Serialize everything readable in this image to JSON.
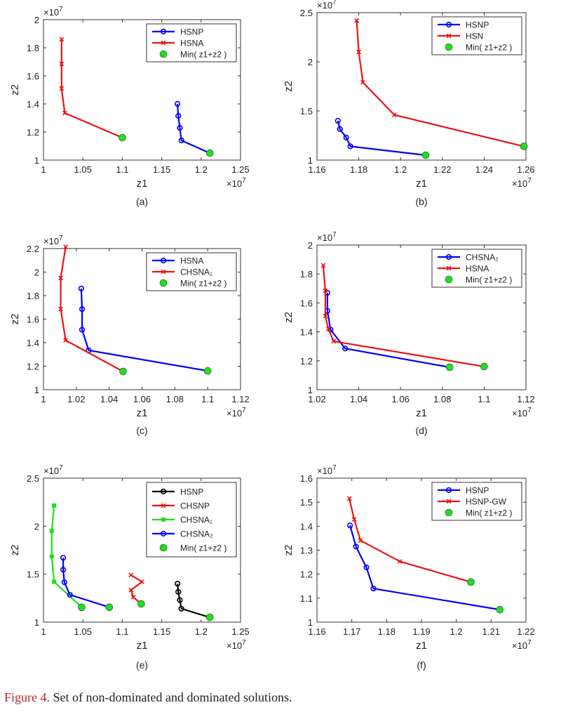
{
  "caption": {
    "label": "Figure 4.",
    "text": "Set of non-dominated and dominated solutions."
  },
  "colors": {
    "blue": "#0000ff",
    "red": "#ee1111",
    "green": "#22dd22",
    "black": "#000000",
    "marker_green": "#22dd22"
  },
  "chart_data": [
    {
      "type": "line",
      "panel": "(a)",
      "xlabel": "z1",
      "ylabel": "z2",
      "x_exponent": "×10^7",
      "y_exponent": "×10^7",
      "xlim": [
        1,
        1.25
      ],
      "ylim": [
        1,
        2
      ],
      "xticks": [
        1,
        1.05,
        1.1,
        1.15,
        1.2,
        1.25
      ],
      "yticks": [
        1,
        1.2,
        1.4,
        1.6,
        1.8,
        2
      ],
      "xticklabels": [
        "1",
        "1.05",
        "1.1",
        "1.15",
        "1.2",
        "1.25"
      ],
      "yticklabels": [
        "1",
        "1.2",
        "1.4",
        "1.6",
        "1.8",
        "2"
      ],
      "legend_position": "top-right",
      "series": [
        {
          "name": "HSNP",
          "color": "#0000ff",
          "marker": "o",
          "x": [
            1.17,
            1.171,
            1.173,
            1.175,
            1.211
          ],
          "y": [
            1.4,
            1.315,
            1.23,
            1.14,
            1.05
          ]
        },
        {
          "name": "HSNA",
          "color": "#ee1111",
          "marker": "x",
          "x": [
            1.023,
            1.023,
            1.023,
            1.027,
            1.1
          ],
          "y": [
            1.86,
            1.685,
            1.51,
            1.335,
            1.16
          ]
        },
        {
          "name": "Min( z1+z2 )",
          "color": "#22dd22",
          "marker": "dot",
          "x": [
            1.1,
            1.211
          ],
          "y": [
            1.16,
            1.05
          ]
        }
      ]
    },
    {
      "type": "line",
      "panel": "(b)",
      "xlabel": "z1",
      "ylabel": "z2",
      "x_exponent": "×10^7",
      "y_exponent": "×10^7",
      "xlim": [
        1.16,
        1.26
      ],
      "ylim": [
        1,
        2.5
      ],
      "xticks": [
        1.16,
        1.18,
        1.2,
        1.22,
        1.24,
        1.26
      ],
      "yticks": [
        1,
        1.5,
        2,
        2.5
      ],
      "xticklabels": [
        "1.16",
        "1.18",
        "1.2",
        "1.22",
        "1.24",
        "1.26"
      ],
      "yticklabels": [
        "1",
        "1.5",
        "2",
        "2.5"
      ],
      "legend_position": "top-right",
      "series": [
        {
          "name": "HSNP",
          "color": "#0000ff",
          "marker": "o",
          "x": [
            1.17,
            1.171,
            1.174,
            1.176,
            1.212
          ],
          "y": [
            1.4,
            1.315,
            1.23,
            1.14,
            1.05
          ]
        },
        {
          "name": "HSN",
          "color": "#ee1111",
          "marker": "x",
          "x": [
            1.179,
            1.18,
            1.182,
            1.197,
            1.259
          ],
          "y": [
            2.42,
            2.1,
            1.79,
            1.46,
            1.14
          ]
        },
        {
          "name": "Min( z1+z2 )",
          "color": "#22dd22",
          "marker": "dot",
          "x": [
            1.212,
            1.259
          ],
          "y": [
            1.05,
            1.14
          ]
        }
      ]
    },
    {
      "type": "line",
      "panel": "(c)",
      "xlabel": "z1",
      "ylabel": "z2",
      "x_exponent": "×10^7",
      "y_exponent": "×10^7",
      "xlim": [
        1,
        1.12
      ],
      "ylim": [
        1,
        2.2
      ],
      "xticks": [
        1,
        1.02,
        1.04,
        1.06,
        1.08,
        1.1,
        1.12
      ],
      "yticks": [
        1,
        1.2,
        1.4,
        1.6,
        1.8,
        2,
        2.2
      ],
      "xticklabels": [
        "1",
        "1.02",
        "1.04",
        "1.06",
        "1.08",
        "1.1",
        "1.12"
      ],
      "yticklabels": [
        "1",
        "1.2",
        "1.4",
        "1.6",
        "1.8",
        "2",
        "2.2"
      ],
      "legend_position": "top-right",
      "series": [
        {
          "name": "HSNA",
          "color": "#0000ff",
          "marker": "o",
          "x": [
            1.023,
            1.0235,
            1.0235,
            1.0275,
            1.1
          ],
          "y": [
            1.86,
            1.685,
            1.51,
            1.335,
            1.16
          ]
        },
        {
          "name": "CHSNA₁",
          "color": "#ee1111",
          "marker": "x",
          "x": [
            1.0135,
            1.0105,
            1.0105,
            1.0135,
            1.0485
          ],
          "y": [
            2.215,
            1.95,
            1.685,
            1.42,
            1.155
          ]
        },
        {
          "name": "Min( z1+z2 )",
          "color": "#22dd22",
          "marker": "dot",
          "x": [
            1.0485,
            1.1
          ],
          "y": [
            1.155,
            1.16
          ]
        }
      ]
    },
    {
      "type": "line",
      "panel": "(d)",
      "xlabel": "z1",
      "ylabel": "z2",
      "x_exponent": "×10^7",
      "y_exponent": "×10^7",
      "xlim": [
        1.02,
        1.12
      ],
      "ylim": [
        1,
        2
      ],
      "xticks": [
        1.02,
        1.04,
        1.06,
        1.08,
        1.1,
        1.12
      ],
      "yticks": [
        1,
        1.2,
        1.4,
        1.6,
        1.8,
        2
      ],
      "xticklabels": [
        "1.02",
        "1.04",
        "1.06",
        "1.08",
        "1.1",
        "1.12"
      ],
      "yticklabels": [
        "1",
        "1.2",
        "1.4",
        "1.6",
        "1.8",
        "2"
      ],
      "legend_position": "top-right",
      "series": [
        {
          "name": "CHSNA₂",
          "color": "#0000ff",
          "marker": "o",
          "x": [
            1.025,
            1.025,
            1.0265,
            1.0335,
            1.0835
          ],
          "y": [
            1.67,
            1.545,
            1.415,
            1.285,
            1.155
          ]
        },
        {
          "name": "HSNA",
          "color": "#ee1111",
          "marker": "x",
          "x": [
            1.023,
            1.024,
            1.024,
            1.0255,
            1.028,
            1.1
          ],
          "y": [
            1.86,
            1.685,
            1.51,
            1.42,
            1.335,
            1.16
          ]
        },
        {
          "name": "Min( z1+z2 )",
          "color": "#22dd22",
          "marker": "dot",
          "x": [
            1.0835,
            1.1
          ],
          "y": [
            1.155,
            1.16
          ]
        }
      ]
    },
    {
      "type": "line",
      "panel": "(e)",
      "xlabel": "z1",
      "ylabel": "z2",
      "x_exponent": "×10^7",
      "y_exponent": "×10^7",
      "xlim": [
        1,
        1.25
      ],
      "ylim": [
        1,
        2.5
      ],
      "xticks": [
        1,
        1.05,
        1.1,
        1.15,
        1.2,
        1.25
      ],
      "yticks": [
        1,
        1.5,
        2,
        2.5
      ],
      "xticklabels": [
        "1",
        "1.05",
        "1.1",
        "1.15",
        "1.2",
        "1.25"
      ],
      "yticklabels": [
        "1",
        "1.5",
        "2",
        "2.5"
      ],
      "legend_position": "top-right",
      "series": [
        {
          "name": "HSNP",
          "color": "#000000",
          "marker": "o",
          "x": [
            1.17,
            1.171,
            1.173,
            1.175,
            1.211
          ],
          "y": [
            1.4,
            1.315,
            1.23,
            1.14,
            1.05
          ]
        },
        {
          "name": "CHSNP",
          "color": "#ee1111",
          "marker": "x",
          "x": [
            1.111,
            1.125,
            1.111,
            1.114,
            1.124
          ],
          "y": [
            1.49,
            1.42,
            1.335,
            1.26,
            1.19
          ]
        },
        {
          "name": "CHSNA₁",
          "color": "#22dd22",
          "marker": "s",
          "x": [
            1.0135,
            1.0105,
            1.0105,
            1.0135,
            1.0485
          ],
          "y": [
            2.215,
            1.95,
            1.685,
            1.42,
            1.155
          ]
        },
        {
          "name": "CHSNA₂",
          "color": "#0000ff",
          "marker": "o",
          "x": [
            1.025,
            1.025,
            1.0265,
            1.0335,
            1.0835
          ],
          "y": [
            1.67,
            1.545,
            1.415,
            1.285,
            1.155
          ]
        },
        {
          "name": "Min( z1+z2 )",
          "color": "#22dd22",
          "marker": "dot",
          "x": [
            1.0485,
            1.0835,
            1.124,
            1.211
          ],
          "y": [
            1.155,
            1.155,
            1.19,
            1.05
          ]
        }
      ]
    },
    {
      "type": "line",
      "panel": "(f)",
      "xlabel": "z1",
      "ylabel": "z2",
      "x_exponent": "×10^7",
      "y_exponent": "×10^7",
      "xlim": [
        1.16,
        1.22
      ],
      "ylim": [
        1,
        1.6
      ],
      "xticks": [
        1.16,
        1.17,
        1.18,
        1.19,
        1.2,
        1.21,
        1.22
      ],
      "yticks": [
        1,
        1.1,
        1.2,
        1.3,
        1.4,
        1.5,
        1.6
      ],
      "xticklabels": [
        "1.16",
        "1.17",
        "1.18",
        "1.19",
        "1.2",
        "1.21",
        "1.22"
      ],
      "yticklabels": [
        "1",
        "1.1",
        "1.2",
        "1.3",
        "1.4",
        "1.5",
        "1.6"
      ],
      "legend_position": "top-right",
      "series": [
        {
          "name": "HSNP",
          "color": "#0000ff",
          "marker": "o",
          "x": [
            1.1695,
            1.1712,
            1.1742,
            1.1762,
            1.2125
          ],
          "y": [
            1.403,
            1.315,
            1.228,
            1.14,
            1.052
          ]
        },
        {
          "name": "HSNP-GW",
          "color": "#ee1111",
          "marker": "x",
          "x": [
            1.1693,
            1.1707,
            1.1725,
            1.1838,
            1.2042
          ],
          "y": [
            1.515,
            1.428,
            1.34,
            1.253,
            1.167
          ]
        },
        {
          "name": "Min( z1+z2 )",
          "color": "#22dd22",
          "marker": "dot",
          "x": [
            1.2042,
            1.2125
          ],
          "y": [
            1.167,
            1.052
          ]
        }
      ]
    }
  ]
}
